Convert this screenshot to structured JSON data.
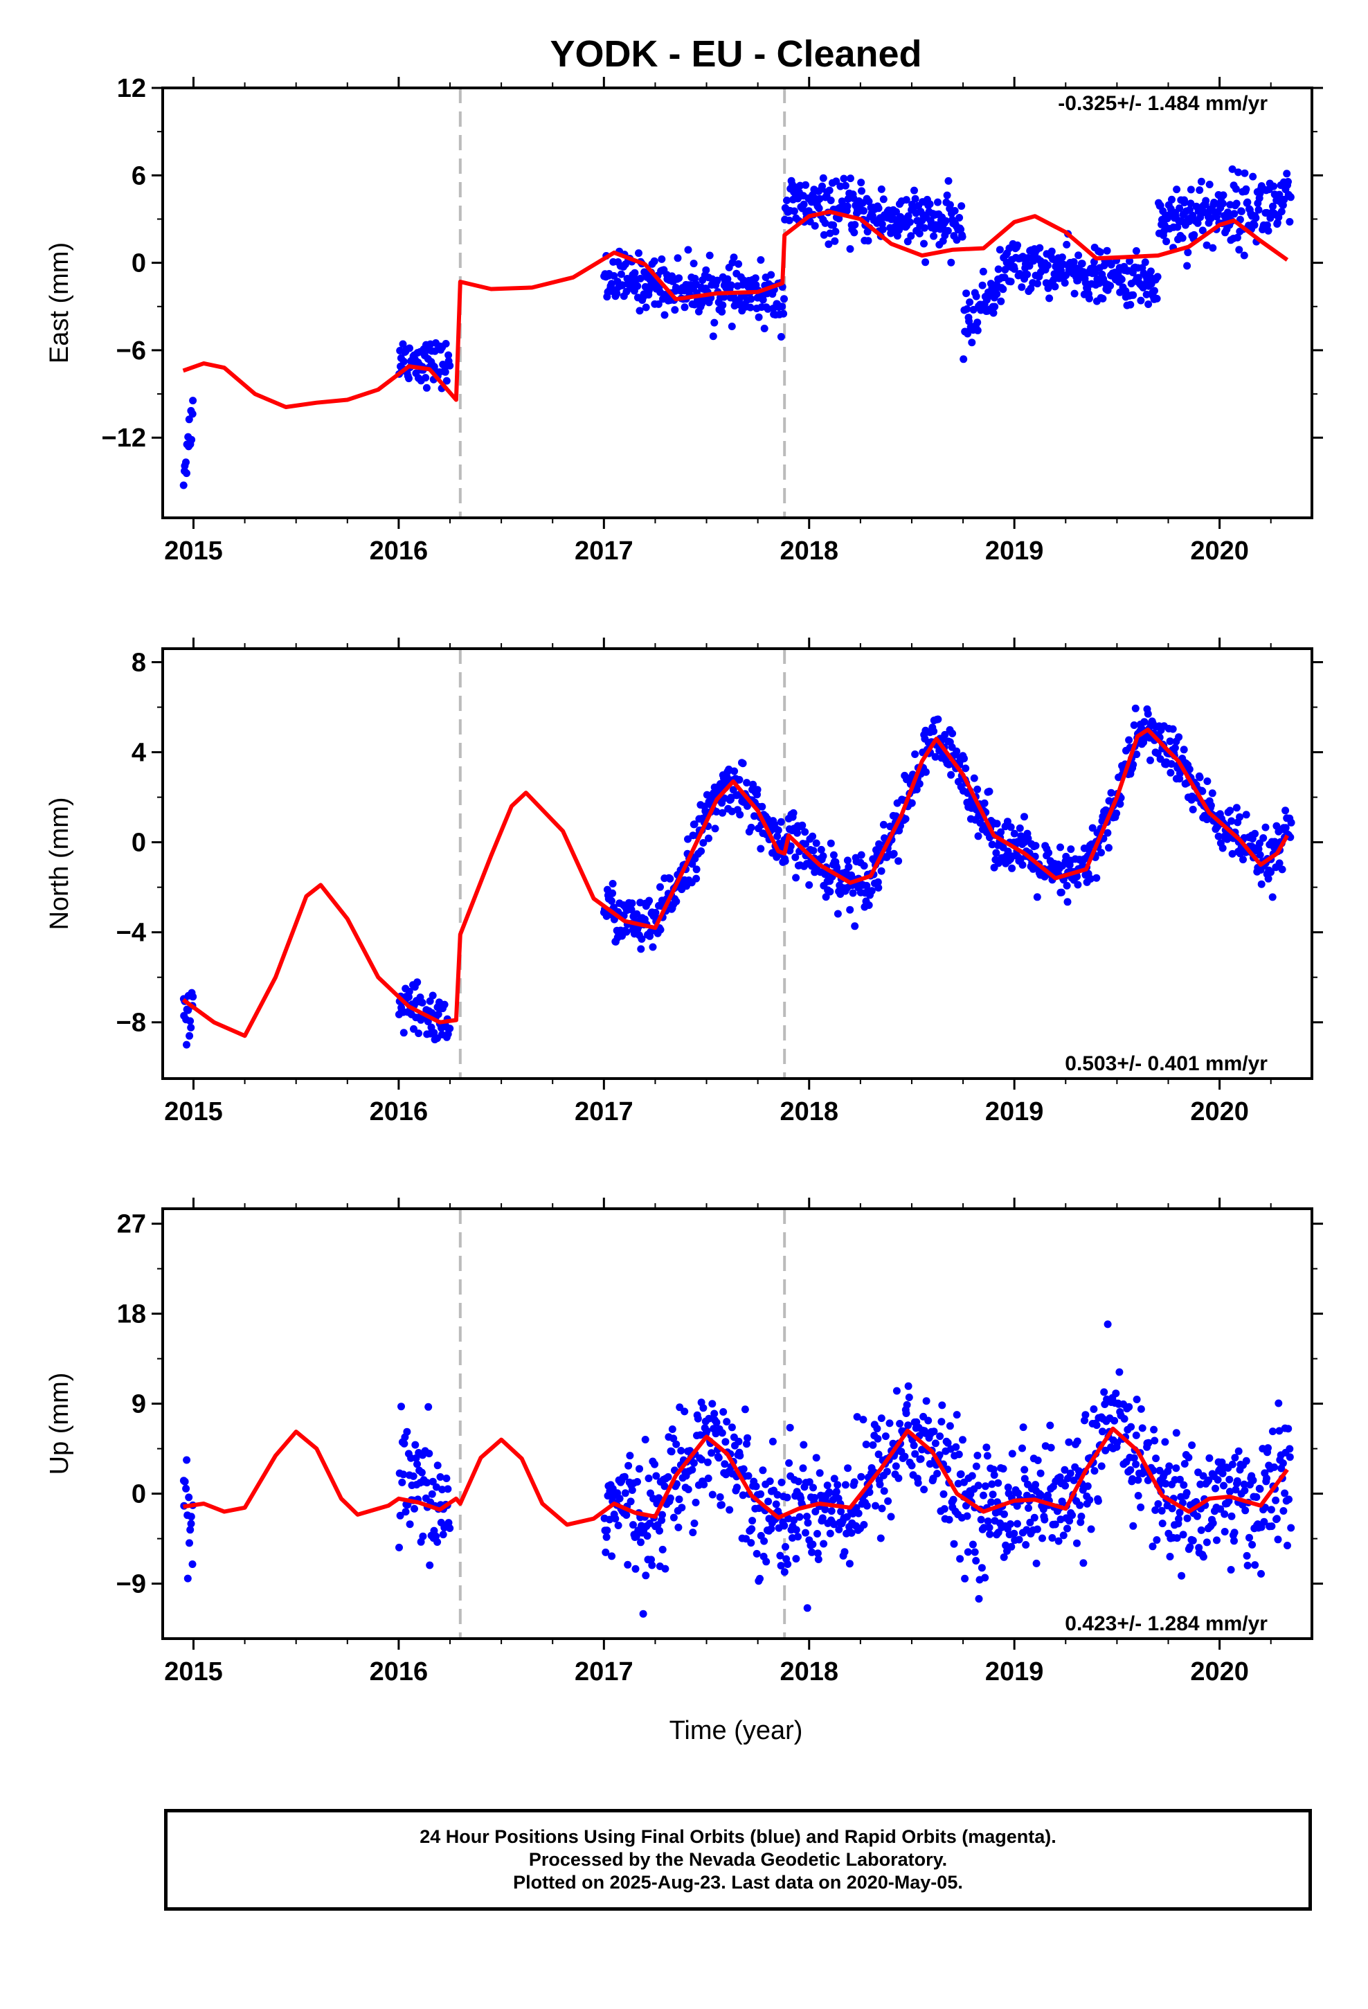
{
  "title": "YODK  - EU - Cleaned",
  "x_axis_label": "Time (year)",
  "caption": {
    "line1": "24 Hour Positions Using Final Orbits (blue) and Rapid Orbits (magenta).",
    "line2": "Processed by the Nevada Geodetic Laboratory.",
    "line3": "Plotted on 2025-Aug-23. Last data on 2020-May-05."
  },
  "colors": {
    "data": "#0000ff",
    "model": "#ff0000",
    "event_line": "#bbbbbb",
    "axis": "#000000"
  },
  "chart_data": [
    {
      "type": "scatter",
      "component": "East",
      "ylabel": "East (mm)",
      "rate_label": "-0.325+/- 1.484 mm/yr",
      "rate_position": "top-right",
      "xlim": [
        2014.85,
        2020.45
      ],
      "ylim": [
        -17.5,
        12
      ],
      "xticks": [
        2015,
        2016,
        2017,
        2018,
        2019,
        2020
      ],
      "yticks": [
        -12,
        -6,
        0,
        6,
        12
      ],
      "event_lines": [
        2016.3,
        2017.88
      ],
      "data_segments": [
        {
          "range": [
            2014.95,
            2015.0
          ],
          "base": [
            -14.5,
            -10
          ],
          "noise": 1.2
        },
        {
          "range": [
            2016.0,
            2016.25
          ],
          "base": [
            -6.5,
            -7
          ],
          "noise": 1.0
        },
        {
          "range": [
            2017.0,
            2017.88
          ],
          "base": [
            -1,
            -2.5
          ],
          "noise": 1.2
        },
        {
          "range": [
            2017.88,
            2018.75
          ],
          "base": [
            4,
            2.5
          ],
          "noise": 1.3
        },
        {
          "range": [
            2018.75,
            2018.95
          ],
          "base": [
            -4.5,
            -1
          ],
          "noise": 1.2
        },
        {
          "range": [
            2018.95,
            2019.7
          ],
          "base": [
            0,
            -1.5
          ],
          "noise": 1.1
        },
        {
          "range": [
            2019.7,
            2020.35
          ],
          "base": [
            3,
            4
          ],
          "noise": 1.6
        }
      ],
      "model_line": [
        [
          2014.95,
          -7.4
        ],
        [
          2015.05,
          -6.9
        ],
        [
          2015.15,
          -7.2
        ],
        [
          2015.3,
          -9.0
        ],
        [
          2015.45,
          -9.9
        ],
        [
          2015.6,
          -9.6
        ],
        [
          2015.75,
          -9.4
        ],
        [
          2015.9,
          -8.7
        ],
        [
          2016.05,
          -7.1
        ],
        [
          2016.15,
          -7.3
        ],
        [
          2016.28,
          -9.4
        ],
        [
          2016.3,
          -1.3
        ],
        [
          2016.45,
          -1.8
        ],
        [
          2016.65,
          -1.7
        ],
        [
          2016.85,
          -1.0
        ],
        [
          2017.05,
          0.7
        ],
        [
          2017.2,
          -0.1
        ],
        [
          2017.35,
          -2.5
        ],
        [
          2017.55,
          -2.1
        ],
        [
          2017.75,
          -2.0
        ],
        [
          2017.87,
          -1.4
        ],
        [
          2017.88,
          1.9
        ],
        [
          2018.0,
          3.2
        ],
        [
          2018.1,
          3.5
        ],
        [
          2018.25,
          3.0
        ],
        [
          2018.4,
          1.3
        ],
        [
          2018.55,
          0.5
        ],
        [
          2018.7,
          0.9
        ],
        [
          2018.85,
          1.0
        ],
        [
          2019.0,
          2.8
        ],
        [
          2019.1,
          3.2
        ],
        [
          2019.25,
          2.1
        ],
        [
          2019.4,
          0.3
        ],
        [
          2019.55,
          0.4
        ],
        [
          2019.7,
          0.5
        ],
        [
          2019.85,
          1.1
        ],
        [
          2020.0,
          2.6
        ],
        [
          2020.07,
          2.9
        ],
        [
          2020.2,
          1.5
        ],
        [
          2020.33,
          0.2
        ]
      ]
    },
    {
      "type": "scatter",
      "component": "North",
      "ylabel": "North (mm)",
      "rate_label": "0.503+/- 0.401 mm/yr",
      "rate_position": "bottom-right",
      "xlim": [
        2014.85,
        2020.45
      ],
      "ylim": [
        -10.5,
        8.6
      ],
      "xticks": [
        2015,
        2016,
        2017,
        2018,
        2019,
        2020
      ],
      "yticks": [
        -8,
        -4,
        0,
        4,
        8
      ],
      "event_lines": [
        2016.3,
        2017.88
      ],
      "data_segments": [
        {
          "range": [
            2014.95,
            2015.0
          ],
          "base": [
            -8,
            -8
          ],
          "noise": 1.0
        },
        {
          "range": [
            2016.0,
            2016.25
          ],
          "base": [
            -7.3,
            -8.0
          ],
          "noise": 0.8
        },
        {
          "range": [
            2017.0,
            2017.88
          ],
          "model_follow": true,
          "noise": 0.8
        },
        {
          "range": [
            2017.88,
            2019.3
          ],
          "model_follow": true,
          "noise": 0.8
        },
        {
          "range": [
            2019.3,
            2020.35
          ],
          "model_follow": true,
          "noise": 0.8
        }
      ],
      "model_line": [
        [
          2014.95,
          -7.0
        ],
        [
          2015.1,
          -8.0
        ],
        [
          2015.25,
          -8.6
        ],
        [
          2015.4,
          -6.0
        ],
        [
          2015.55,
          -2.4
        ],
        [
          2015.62,
          -1.9
        ],
        [
          2015.75,
          -3.4
        ],
        [
          2015.9,
          -6.0
        ],
        [
          2016.05,
          -7.3
        ],
        [
          2016.2,
          -8.0
        ],
        [
          2016.28,
          -7.9
        ],
        [
          2016.3,
          -4.1
        ],
        [
          2016.45,
          -0.6
        ],
        [
          2016.55,
          1.6
        ],
        [
          2016.62,
          2.2
        ],
        [
          2016.8,
          0.5
        ],
        [
          2016.95,
          -2.5
        ],
        [
          2017.1,
          -3.5
        ],
        [
          2017.25,
          -3.8
        ],
        [
          2017.4,
          -1.0
        ],
        [
          2017.55,
          1.9
        ],
        [
          2017.63,
          2.7
        ],
        [
          2017.75,
          1.4
        ],
        [
          2017.85,
          -0.4
        ],
        [
          2017.88,
          -0.5
        ],
        [
          2017.9,
          0.3
        ],
        [
          2018.05,
          -1.0
        ],
        [
          2018.2,
          -1.8
        ],
        [
          2018.3,
          -1.5
        ],
        [
          2018.45,
          1.2
        ],
        [
          2018.55,
          3.6
        ],
        [
          2018.62,
          4.6
        ],
        [
          2018.75,
          3.0
        ],
        [
          2018.9,
          0.3
        ],
        [
          2019.05,
          -0.5
        ],
        [
          2019.2,
          -1.6
        ],
        [
          2019.35,
          -1.2
        ],
        [
          2019.5,
          2.0
        ],
        [
          2019.6,
          4.7
        ],
        [
          2019.65,
          5.0
        ],
        [
          2019.8,
          3.6
        ],
        [
          2019.95,
          1.3
        ],
        [
          2020.1,
          0.1
        ],
        [
          2020.2,
          -1.0
        ],
        [
          2020.28,
          -0.5
        ],
        [
          2020.33,
          0.3
        ]
      ]
    },
    {
      "type": "scatter",
      "component": "Up",
      "ylabel": "Up (mm)",
      "rate_label": "0.423+/- 1.284 mm/yr",
      "rate_position": "bottom-right",
      "xlim": [
        2014.85,
        2020.45
      ],
      "ylim": [
        -14.5,
        28.5
      ],
      "xticks": [
        2015,
        2016,
        2017,
        2018,
        2019,
        2020
      ],
      "yticks": [
        -9,
        0,
        9,
        18,
        27
      ],
      "event_lines": [
        2016.3,
        2017.88
      ],
      "data_segments": [
        {
          "range": [
            2014.95,
            2015.0
          ],
          "base": [
            1,
            -5
          ],
          "noise": 4.5
        },
        {
          "range": [
            2016.0,
            2016.25
          ],
          "base": [
            1,
            -2
          ],
          "noise": 4.0
        },
        {
          "range": [
            2017.0,
            2017.88
          ],
          "model_follow": true,
          "noise": 4.0
        },
        {
          "range": [
            2017.88,
            2019.3
          ],
          "model_follow": true,
          "noise": 4.0
        },
        {
          "range": [
            2019.3,
            2020.35
          ],
          "model_follow": true,
          "noise": 4.2
        }
      ],
      "model_line": [
        [
          2014.95,
          -1.3
        ],
        [
          2015.05,
          -1.0
        ],
        [
          2015.15,
          -1.8
        ],
        [
          2015.25,
          -1.4
        ],
        [
          2015.4,
          3.8
        ],
        [
          2015.5,
          6.2
        ],
        [
          2015.6,
          4.5
        ],
        [
          2015.72,
          -0.5
        ],
        [
          2015.8,
          -2.1
        ],
        [
          2015.95,
          -1.2
        ],
        [
          2016.0,
          -0.5
        ],
        [
          2016.1,
          -0.9
        ],
        [
          2016.2,
          -1.6
        ],
        [
          2016.28,
          -0.5
        ],
        [
          2016.3,
          -1.0
        ],
        [
          2016.4,
          3.6
        ],
        [
          2016.5,
          5.4
        ],
        [
          2016.6,
          3.5
        ],
        [
          2016.7,
          -1.0
        ],
        [
          2016.82,
          -3.1
        ],
        [
          2016.95,
          -2.5
        ],
        [
          2017.05,
          -1.0
        ],
        [
          2017.15,
          -1.9
        ],
        [
          2017.25,
          -2.3
        ],
        [
          2017.35,
          1.8
        ],
        [
          2017.5,
          5.7
        ],
        [
          2017.6,
          4.0
        ],
        [
          2017.72,
          -0.2
        ],
        [
          2017.85,
          -2.4
        ],
        [
          2017.95,
          -1.5
        ],
        [
          2018.05,
          -1.0
        ],
        [
          2018.2,
          -1.4
        ],
        [
          2018.35,
          2.5
        ],
        [
          2018.48,
          6.3
        ],
        [
          2018.6,
          4.2
        ],
        [
          2018.72,
          0.0
        ],
        [
          2018.85,
          -1.8
        ],
        [
          2019.0,
          -0.7
        ],
        [
          2019.1,
          -0.6
        ],
        [
          2019.25,
          -1.5
        ],
        [
          2019.35,
          2.4
        ],
        [
          2019.48,
          6.5
        ],
        [
          2019.6,
          4.3
        ],
        [
          2019.72,
          -0.2
        ],
        [
          2019.85,
          -1.8
        ],
        [
          2019.95,
          -0.5
        ],
        [
          2020.05,
          -0.3
        ],
        [
          2020.2,
          -1.2
        ],
        [
          2020.33,
          2.4
        ]
      ]
    }
  ]
}
